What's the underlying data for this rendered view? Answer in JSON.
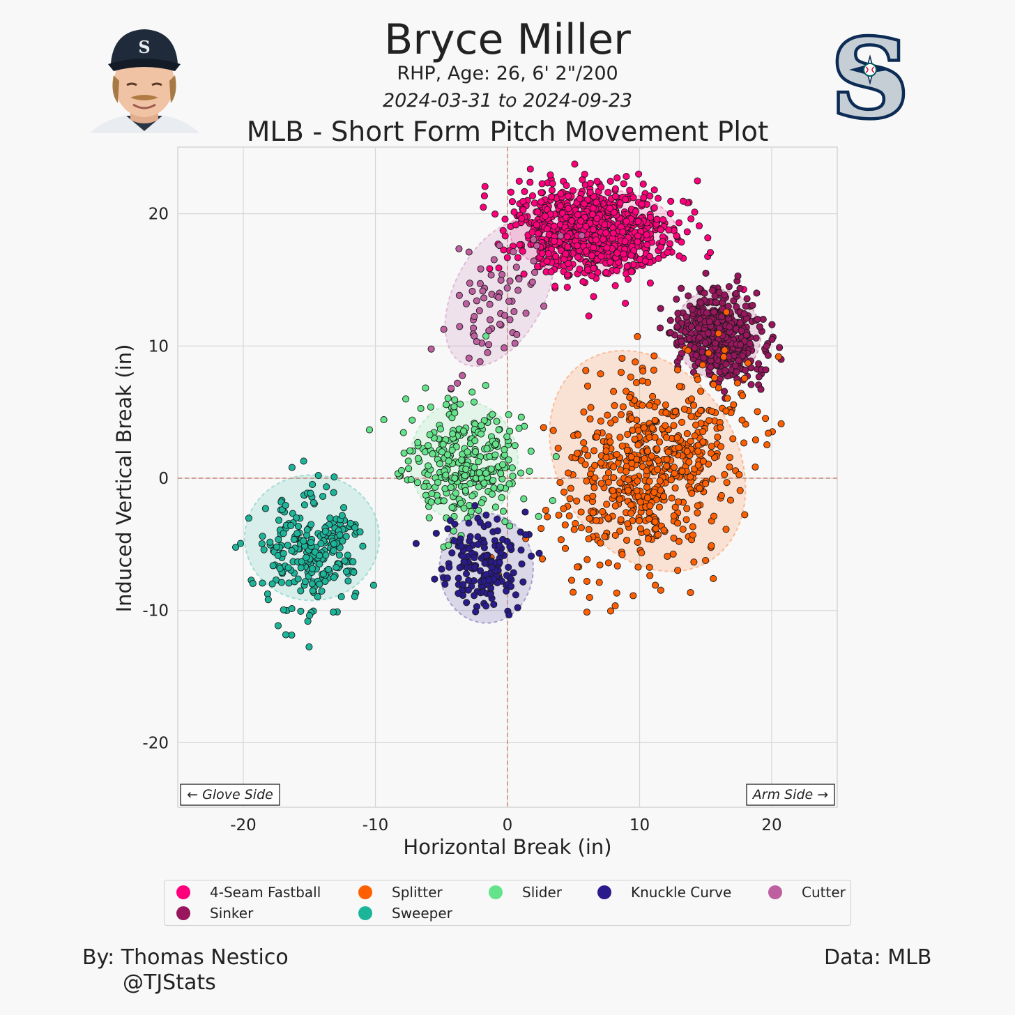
{
  "header": {
    "player_name": "Bryce Miller",
    "bio": "RHP, Age: 26, 6' 2\"/200",
    "date_range": "2024-03-31 to 2024-09-23",
    "plot_title": "MLB - Short Form Pitch Movement Plot"
  },
  "footer": {
    "author": "By: Thomas Nestico",
    "handle": "@TJStats",
    "data_source": "Data: MLB"
  },
  "icons": {
    "headshot": "player-headshot-icon",
    "team_logo": "mariners-logo-icon"
  },
  "chart_data": {
    "type": "scatter",
    "xlabel": "Horizontal Break (in)",
    "ylabel": "Induced Vertical Break (in)",
    "xlim": [
      -25,
      25
    ],
    "ylim": [
      -25,
      25
    ],
    "xticks": [
      -20,
      -10,
      0,
      10,
      20
    ],
    "yticks": [
      20,
      10,
      0,
      -10,
      -20
    ],
    "grid": true,
    "reference_lines": {
      "x": 0,
      "y": 0,
      "style": "dashed",
      "color": "#c9826e"
    },
    "annotations": {
      "left": "← Glove Side",
      "right": "Arm Side →"
    },
    "legend_position": "bottom",
    "series": [
      {
        "name": "4-Seam Fastball",
        "color": "#ff007d",
        "count": 900,
        "center": [
          6.5,
          18.6
        ],
        "sd": [
          3.0,
          1.7
        ],
        "rho": -0.1,
        "ellipse": {
          "center": [
            6.5,
            18.6
          ],
          "width": 12.6,
          "height": 6.6,
          "angle": 0
        }
      },
      {
        "name": "Sinker",
        "color": "#98165d",
        "count": 480,
        "center": [
          15.9,
          10.7
        ],
        "sd": [
          1.6,
          1.7
        ],
        "rho": -0.2,
        "ellipse": {
          "center": [
            15.9,
            10.9
          ],
          "width": 6.5,
          "height": 6.8,
          "angle": -20
        }
      },
      {
        "name": "Splitter",
        "color": "#ff5f00",
        "count": 600,
        "center": [
          10.8,
          0.5
        ],
        "sd": [
          3.4,
          4.0
        ],
        "rho": 0.35,
        "ellipse": {
          "center": [
            10.6,
            1.3
          ],
          "width": 13.5,
          "height": 17.8,
          "angle": -32
        }
      },
      {
        "name": "Sweeper",
        "color": "#1db59a",
        "count": 260,
        "center": [
          -14.8,
          -5.4
        ],
        "sd": [
          1.9,
          2.2
        ],
        "rho": 0.05,
        "ellipse": {
          "center": [
            -14.8,
            -4.5
          ],
          "width": 10.2,
          "height": 9.5,
          "angle": 0
        }
      },
      {
        "name": "Slider",
        "color": "#64e38a",
        "count": 300,
        "center": [
          -3.3,
          1.2
        ],
        "sd": [
          2.2,
          2.4
        ],
        "rho": -0.05,
        "ellipse": {
          "center": [
            -3.3,
            1.3
          ],
          "width": 8.2,
          "height": 9.0,
          "angle": 0
        }
      },
      {
        "name": "Knuckle Curve",
        "color": "#2a1b8d",
        "count": 170,
        "center": [
          -1.7,
          -6.5
        ],
        "sd": [
          1.6,
          1.8
        ],
        "rho": -0.1,
        "ellipse": {
          "center": [
            -1.6,
            -6.8
          ],
          "width": 7.1,
          "height": 8.3,
          "angle": 0
        }
      },
      {
        "name": "Cutter",
        "color": "#be5fa0",
        "count": 72,
        "center": [
          -0.5,
          13.5
        ],
        "sd": [
          2.3,
          2.9
        ],
        "rho": 0.5,
        "ellipse": {
          "center": [
            -0.6,
            14.0
          ],
          "width": 6.8,
          "height": 12.0,
          "angle": 28
        }
      }
    ]
  }
}
